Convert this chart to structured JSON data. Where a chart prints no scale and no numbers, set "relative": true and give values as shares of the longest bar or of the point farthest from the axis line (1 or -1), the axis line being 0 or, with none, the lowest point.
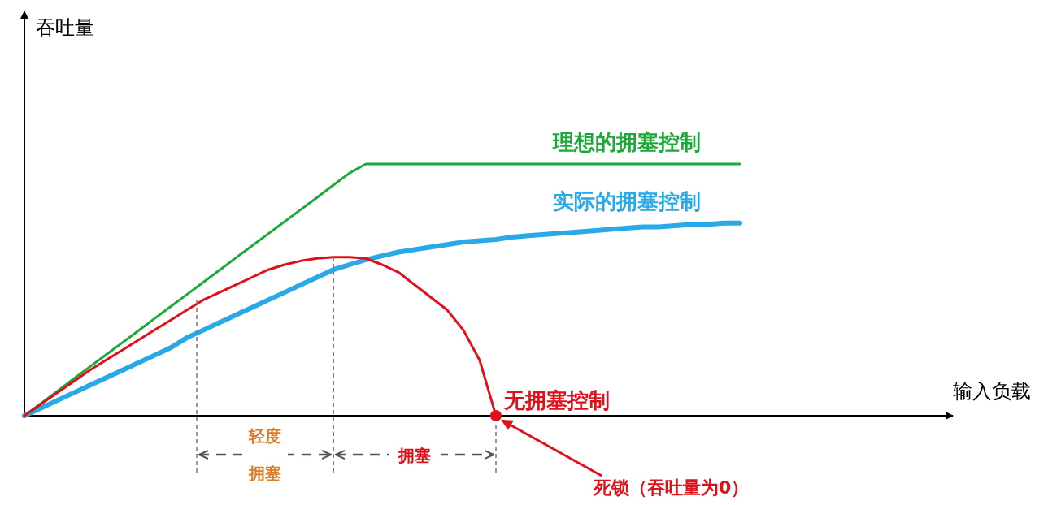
{
  "chart_data": {
    "type": "line",
    "relative": true,
    "legend": false,
    "categories": [
      null,
      null,
      null,
      null,
      null,
      null,
      null,
      null,
      null,
      null,
      null,
      null,
      null,
      null,
      null,
      null,
      null,
      null,
      null,
      null,
      null,
      null,
      null,
      null,
      null,
      null,
      null,
      null,
      null,
      null,
      null,
      null,
      null,
      null,
      null,
      null,
      null,
      null,
      null,
      null,
      null,
      null,
      null,
      null,
      null
    ],
    "series": [
      {
        "name": "理想的拥塞控制",
        "color": "#1fa83a",
        "values": [
          0,
          0.048,
          0.096,
          0.145,
          0.193,
          0.241,
          0.289,
          0.337,
          0.386,
          0.434,
          0.482,
          0.53,
          0.578,
          0.627,
          0.675,
          0.723,
          0.771,
          0.819,
          0.867,
          0.916,
          0.964,
          1,
          1,
          1,
          1,
          1,
          1,
          1,
          1,
          1,
          1,
          1,
          1,
          1,
          1,
          1,
          1,
          1,
          1,
          1,
          1,
          1,
          1,
          1,
          1
        ]
      },
      {
        "name": "实际的拥塞控制",
        "color": "#2aa9e8",
        "values": [
          0,
          0.03,
          0.06,
          0.09,
          0.12,
          0.15,
          0.18,
          0.21,
          0.24,
          0.27,
          0.31,
          0.34,
          0.37,
          0.4,
          0.43,
          0.46,
          0.49,
          0.52,
          0.55,
          0.58,
          0.6,
          0.62,
          0.635,
          0.65,
          0.66,
          0.67,
          0.68,
          0.69,
          0.695,
          0.7,
          0.71,
          0.715,
          0.72,
          0.725,
          0.73,
          0.735,
          0.74,
          0.745,
          0.75,
          0.75,
          0.755,
          0.76,
          0.76,
          0.765,
          0.765
        ]
      },
      {
        "name": "无拥塞控制",
        "color": "#e0101a",
        "values": [
          0,
          0.045,
          0.09,
          0.135,
          0.18,
          0.22,
          0.26,
          0.3,
          0.34,
          0.38,
          0.42,
          0.46,
          0.49,
          0.52,
          0.55,
          0.58,
          0.6,
          0.615,
          0.625,
          0.63,
          0.63,
          0.625,
          0.6,
          0.57,
          0.52,
          0.47,
          0.42,
          0.34,
          0.22,
          0,
          null,
          null,
          null,
          null,
          null,
          null,
          null,
          null,
          null,
          null,
          null,
          null,
          null,
          null,
          null
        ]
      }
    ],
    "annotations": [
      "吞吐量",
      "输入负载",
      "轻度拥塞",
      "拥塞",
      "死锁（吞吐量为0）"
    ]
  }
}
